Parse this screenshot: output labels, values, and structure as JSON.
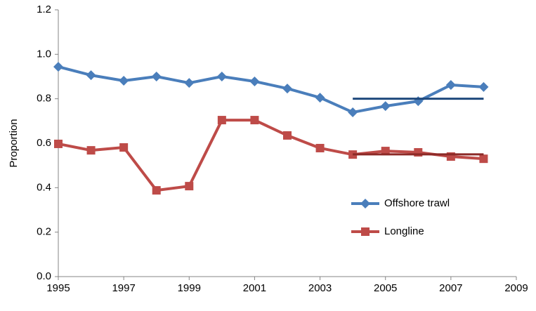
{
  "chart_data": {
    "type": "line",
    "y_label": "Proportion",
    "x": [
      1995,
      1996,
      1997,
      1998,
      1999,
      2000,
      2001,
      2002,
      2003,
      2004,
      2005,
      2006,
      2007,
      2008
    ],
    "series": [
      {
        "name": "Offshore trawl",
        "color": "#4a7ebb",
        "marker": "diamond",
        "values": [
          0.944,
          0.906,
          0.881,
          0.9,
          0.871,
          0.9,
          0.878,
          0.846,
          0.805,
          0.739,
          0.767,
          0.789,
          0.862,
          0.853
        ]
      },
      {
        "name": "Longline",
        "color": "#be4b48",
        "marker": "square",
        "values": [
          0.597,
          0.568,
          0.581,
          0.388,
          0.407,
          0.704,
          0.704,
          0.635,
          0.578,
          0.549,
          0.565,
          0.559,
          0.54,
          0.53
        ]
      }
    ],
    "reference_lines": [
      {
        "x": [
          2004,
          2008
        ],
        "y": 0.8,
        "color": "#1f497d"
      },
      {
        "x": [
          2004,
          2008
        ],
        "y": 0.55,
        "color": "#8c2a27"
      }
    ],
    "xlim": [
      1995,
      2009
    ],
    "xticks": [
      1995,
      1997,
      1999,
      2001,
      2003,
      2005,
      2007,
      2009
    ],
    "ylim": [
      0,
      1.2
    ],
    "yticks": [
      {
        "value": 0,
        "label": "0.0"
      },
      0.2,
      0.4,
      0.6,
      0.8,
      {
        "value": 1,
        "label": "1.0"
      },
      1.2
    ],
    "legend": "right"
  }
}
